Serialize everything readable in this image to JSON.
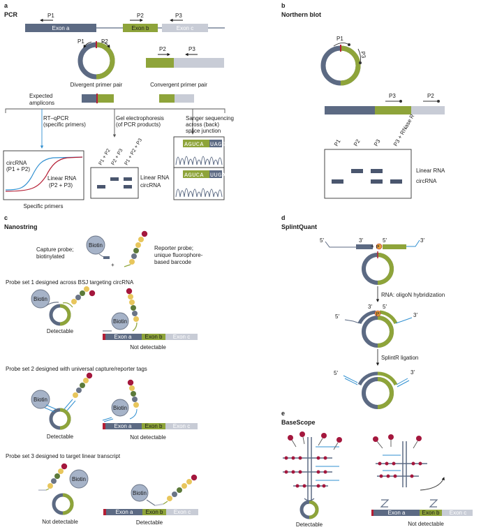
{
  "colors": {
    "slate": "#5c6a83",
    "olive": "#8ea43a",
    "lightgray": "#c8ccd6",
    "red": "#b41e34",
    "blue": "#2f8fd0",
    "orange": "#e5a33b",
    "biotin": "#a6b3c8",
    "beadRed": "#a4173d",
    "beadYellow": "#e8c65c",
    "beadGreen": "#5c7a3a",
    "beadGray": "#6a7486"
  },
  "labels": {
    "a": "a",
    "b": "b",
    "c": "c",
    "d": "d",
    "e": "e",
    "pcr": "PCR",
    "northern": "Northern blot",
    "nanostring": "Nanostring",
    "splintquant": "SplintQuant",
    "basescope": "BaseScope",
    "exon_a": "Exon a",
    "exon_b": "Exon b",
    "exon_c": "Exon c",
    "p1": "P1",
    "p2": "P2",
    "p3": "P3",
    "divergent": "Divergent primer pair",
    "convergent": "Convergent primer pair",
    "expected_1": "Expected",
    "expected_2": "amplicons",
    "rtqpcr_1": "RT–qPCR",
    "rtqpcr_2": "(specific primers)",
    "gel_1": "Gel electrophoresis",
    "gel_2": "(of PCR products)",
    "sanger_1": "Sanger sequencing",
    "sanger_2": "across (back)",
    "sanger_3": "splice junction",
    "circrna_p1p2_1": "circRNA",
    "circrna_p1p2_2": "(P1 + P2)",
    "linear_p2p3_1": "Linear RNA",
    "linear_p2p3_2": "(P2 + P3)",
    "specific_primers": "Specific primers",
    "lane_p1p2": "P1 + P2",
    "lane_p2p3": "P2 + P3",
    "lane_p1p2p3": "P1 + P2 + P3",
    "linear_rna": "Linear RNA",
    "circrna": "circRNA",
    "seq1_left": "AGUCA",
    "seq1_right": "UAGGU",
    "seq2_left": "AGUCA",
    "seq2_right": "UUGAC",
    "nb_p1": "P1",
    "nb_p2": "P2",
    "nb_p3": "P3",
    "nb_p3_rnase": "P3 + RNase R",
    "biotin": "Biotin",
    "capture_1": "Capture probe;",
    "capture_2": "biotinylated",
    "plus": "+",
    "reporter_1": "Reporter probe;",
    "reporter_2": "unique fluorophore-",
    "reporter_3": "based barcode",
    "probeset1": "Probe set 1 designed across BSJ targeting circRNA",
    "probeset2": "Probe set 2 designed with universal capture/reporter tags",
    "probeset3": "Probe set 3 designed to target linear transcript",
    "detectable": "Detectable",
    "not_detectable": "Not detectable",
    "five_prime": "5′",
    "three_prime": "3′",
    "p_symbol": "P",
    "rna_oligon": "RNA: oligoN hybridization",
    "splintr": "SplintR ligation"
  }
}
